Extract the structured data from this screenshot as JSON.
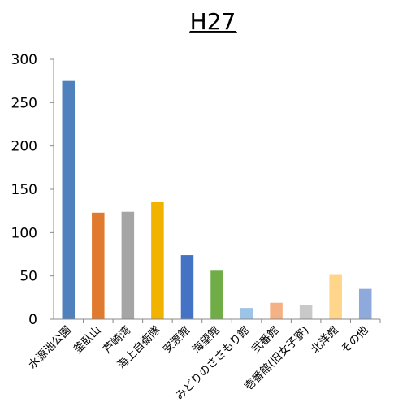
{
  "chart_data": {
    "type": "bar",
    "title": "H27",
    "xlabel": "",
    "ylabel": "",
    "ylim": [
      0,
      300
    ],
    "yticks": [
      0,
      50,
      100,
      150,
      200,
      250,
      300
    ],
    "grid": false,
    "legend": "none",
    "categories": [
      "水源池公園",
      "釜臥山",
      "芦崎湾",
      "海上自衛隊",
      "安渡館",
      "海望館",
      "みどりのささもり館",
      "弐番館",
      "壱番館(旧女子寮)",
      "北洋館",
      "その他"
    ],
    "values": [
      275,
      123,
      124,
      135,
      74,
      56,
      13,
      19,
      16,
      52,
      35
    ],
    "colors": [
      "#4F81BD",
      "#E07A2E",
      "#A5A5A5",
      "#F2B200",
      "#4472C4",
      "#70AD47",
      "#9DC3E6",
      "#F4B183",
      "#C9C9C9",
      "#FFD58A",
      "#8EA9DB"
    ]
  }
}
